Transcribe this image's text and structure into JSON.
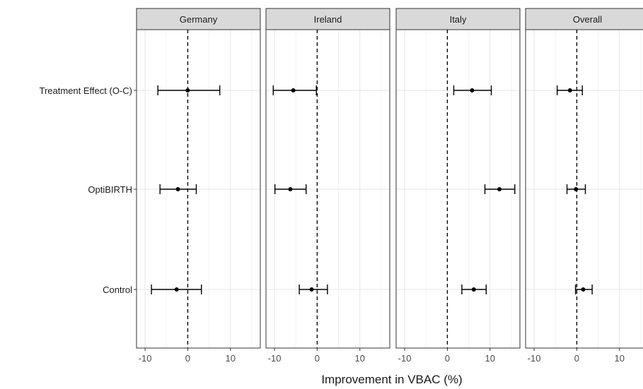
{
  "chart_data": {
    "type": "forest",
    "xlabel": "Improvement in VBAC (%)",
    "xlim": [
      -12,
      17
    ],
    "x_ticks": [
      -10,
      0,
      10
    ],
    "x_tick_labels": [
      "-10",
      "0",
      "10"
    ],
    "reference_line": 0,
    "grid": true,
    "categories": [
      "Treatment Effect (O-C)",
      "OptiBIRTH",
      "Control"
    ],
    "panels": [
      {
        "name": "Germany",
        "estimates": [
          {
            "category": "Treatment Effect (O-C)",
            "value": 0.0,
            "lower": -7.0,
            "upper": 7.5
          },
          {
            "category": "OptiBIRTH",
            "value": -2.3,
            "lower": -6.5,
            "upper": 2.0
          },
          {
            "category": "Control",
            "value": -2.6,
            "lower": -8.5,
            "upper": 3.2
          }
        ]
      },
      {
        "name": "Ireland",
        "estimates": [
          {
            "category": "Treatment Effect (O-C)",
            "value": -5.6,
            "lower": -10.3,
            "upper": -0.2
          },
          {
            "category": "OptiBIRTH",
            "value": -6.3,
            "lower": -9.9,
            "upper": -2.6
          },
          {
            "category": "Control",
            "value": -1.3,
            "lower": -4.2,
            "upper": 2.4
          }
        ]
      },
      {
        "name": "Italy",
        "estimates": [
          {
            "category": "Treatment Effect (O-C)",
            "value": 5.8,
            "lower": 1.5,
            "upper": 10.3
          },
          {
            "category": "OptiBIRTH",
            "value": 12.2,
            "lower": 8.8,
            "upper": 15.8
          },
          {
            "category": "Control",
            "value": 6.2,
            "lower": 3.4,
            "upper": 9.1
          }
        ]
      },
      {
        "name": "Overall",
        "estimates": [
          {
            "category": "Treatment Effect (O-C)",
            "value": -1.6,
            "lower": -4.6,
            "upper": 1.3
          },
          {
            "category": "OptiBIRTH",
            "value": -0.2,
            "lower": -2.3,
            "upper": 2.0
          },
          {
            "category": "Control",
            "value": 1.5,
            "lower": -0.3,
            "upper": 3.6
          }
        ]
      }
    ]
  }
}
